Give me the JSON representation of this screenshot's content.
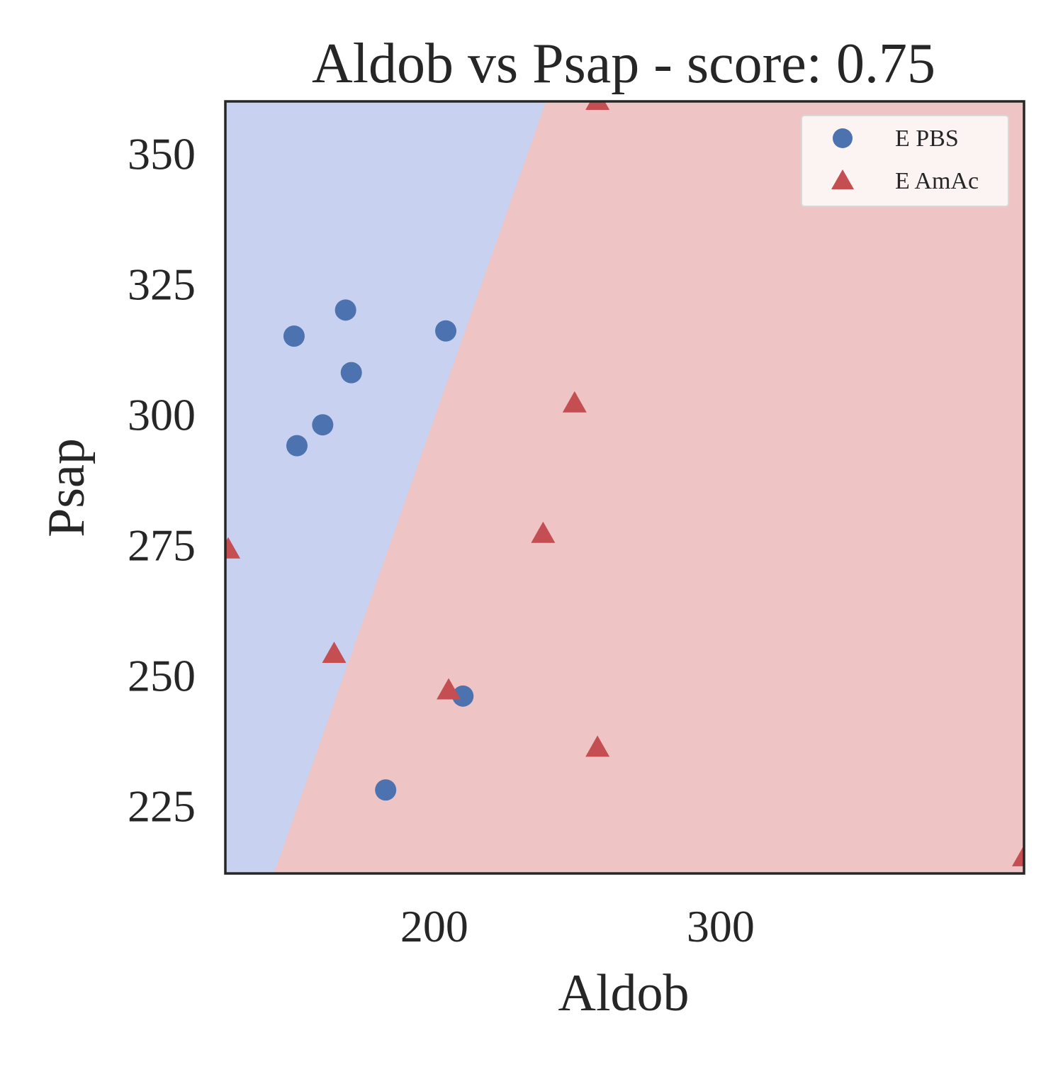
{
  "chart_data": {
    "type": "scatter",
    "title": "Aldob vs Psap - score: 0.75",
    "xlabel": "Aldob",
    "ylabel": "Psap",
    "xlim": [
      127,
      406
    ],
    "ylim": [
      212,
      360
    ],
    "xticks": [
      200,
      300
    ],
    "yticks": [
      225,
      250,
      275,
      300,
      325,
      350
    ],
    "grid": false,
    "legend_position": "top-right",
    "decision_boundary": {
      "points": [
        [
          144,
          212
        ],
        [
          239,
          360
        ]
      ],
      "left_region_class": "E PBS",
      "right_region_class": "E AmAc",
      "left_color": "#c8d1f0",
      "right_color": "#eec4c4"
    },
    "series": [
      {
        "name": "E PBS",
        "marker": "circle",
        "color": "#4c72b0",
        "points": [
          [
            151,
            315
          ],
          [
            169,
            320
          ],
          [
            171,
            308
          ],
          [
            204,
            316
          ],
          [
            161,
            298
          ],
          [
            152,
            294
          ],
          [
            210,
            246
          ],
          [
            183,
            228
          ]
        ]
      },
      {
        "name": "E AmAc",
        "marker": "triangle",
        "color": "#c44e52",
        "points": [
          [
            128,
            274
          ],
          [
            257,
            360
          ],
          [
            249,
            302
          ],
          [
            238,
            277
          ],
          [
            165,
            254
          ],
          [
            205,
            247
          ],
          [
            257,
            236
          ],
          [
            406,
            215
          ]
        ]
      }
    ]
  }
}
